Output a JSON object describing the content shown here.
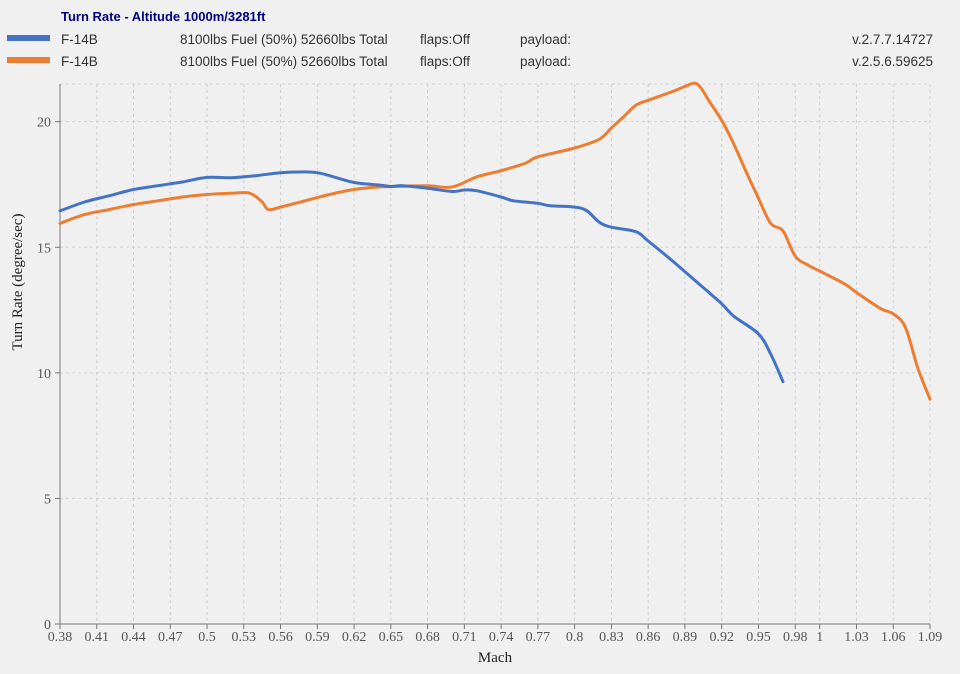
{
  "colors": {
    "title": "#000080",
    "series_1": "#4472c4",
    "series_2": "#ed7d31",
    "background": "#f0f0f0"
  },
  "legend": {
    "entries": [
      {
        "aircraft": "F-14B",
        "fuel": "8100lbs Fuel (50%) 52660lbs Total",
        "flaps": "flaps:Off",
        "payload": "payload:",
        "version": "v.2.7.7.14727"
      },
      {
        "aircraft": "F-14B",
        "fuel": "8100lbs Fuel (50%) 52660lbs Total",
        "flaps": "flaps:Off",
        "payload": "payload:",
        "version": "v.2.5.6.59625"
      }
    ]
  },
  "chart_data": {
    "type": "line",
    "title": "Turn Rate - Altitude 1000m/3281ft",
    "xlabel": "Mach",
    "ylabel": "Turn Rate (degree/sec)",
    "xlim": [
      0.38,
      1.09
    ],
    "ylim": [
      0,
      21.5
    ],
    "x_ticks": [
      0.38,
      0.41,
      0.44,
      0.47,
      0.5,
      0.53,
      0.56,
      0.59,
      0.62,
      0.65,
      0.68,
      0.71,
      0.74,
      0.77,
      0.8,
      0.83,
      0.86,
      0.89,
      0.92,
      0.95,
      0.98,
      1,
      1.03,
      1.06,
      1.09
    ],
    "y_ticks": [
      0,
      5,
      10,
      15,
      20
    ],
    "grid": true,
    "legend_position": "top",
    "series": [
      {
        "x": [
          0.38,
          0.4,
          0.42,
          0.44,
          0.46,
          0.48,
          0.5,
          0.52,
          0.54,
          0.56,
          0.58,
          0.59,
          0.6,
          0.62,
          0.64,
          0.65,
          0.66,
          0.68,
          0.7,
          0.71,
          0.72,
          0.74,
          0.75,
          0.77,
          0.78,
          0.8,
          0.81,
          0.82,
          0.83,
          0.85,
          0.86,
          0.88,
          0.9,
          0.92,
          0.93,
          0.95,
          0.96,
          0.97
        ],
        "y": [
          16.45,
          16.8,
          17.05,
          17.3,
          17.45,
          17.6,
          17.78,
          17.77,
          17.85,
          17.97,
          18.0,
          17.97,
          17.85,
          17.58,
          17.48,
          17.42,
          17.45,
          17.35,
          17.22,
          17.28,
          17.25,
          17.0,
          16.85,
          16.75,
          16.65,
          16.6,
          16.45,
          16.0,
          15.8,
          15.62,
          15.25,
          14.45,
          13.6,
          12.75,
          12.25,
          11.55,
          10.75,
          9.65
        ]
      },
      {
        "x": [
          0.38,
          0.4,
          0.42,
          0.44,
          0.46,
          0.48,
          0.5,
          0.52,
          0.535,
          0.545,
          0.55,
          0.56,
          0.58,
          0.6,
          0.62,
          0.64,
          0.66,
          0.68,
          0.7,
          0.72,
          0.74,
          0.76,
          0.77,
          0.8,
          0.82,
          0.83,
          0.84,
          0.85,
          0.86,
          0.88,
          0.89,
          0.9,
          0.91,
          0.92,
          0.93,
          0.94,
          0.95,
          0.96,
          0.97,
          0.98,
          0.99,
          1.0,
          1.02,
          1.03,
          1.05,
          1.06,
          1.07,
          1.08,
          1.09
        ],
        "y": [
          15.95,
          16.3,
          16.5,
          16.7,
          16.85,
          17.0,
          17.1,
          17.15,
          17.15,
          16.8,
          16.5,
          16.6,
          16.85,
          17.1,
          17.3,
          17.4,
          17.43,
          17.45,
          17.4,
          17.8,
          18.05,
          18.35,
          18.6,
          18.95,
          19.3,
          19.75,
          20.2,
          20.65,
          20.85,
          21.2,
          21.4,
          21.5,
          20.8,
          20.05,
          19.1,
          18.0,
          16.95,
          15.95,
          15.65,
          14.65,
          14.3,
          14.05,
          13.55,
          13.2,
          12.55,
          12.35,
          11.8,
          10.2,
          8.95
        ]
      }
    ]
  }
}
